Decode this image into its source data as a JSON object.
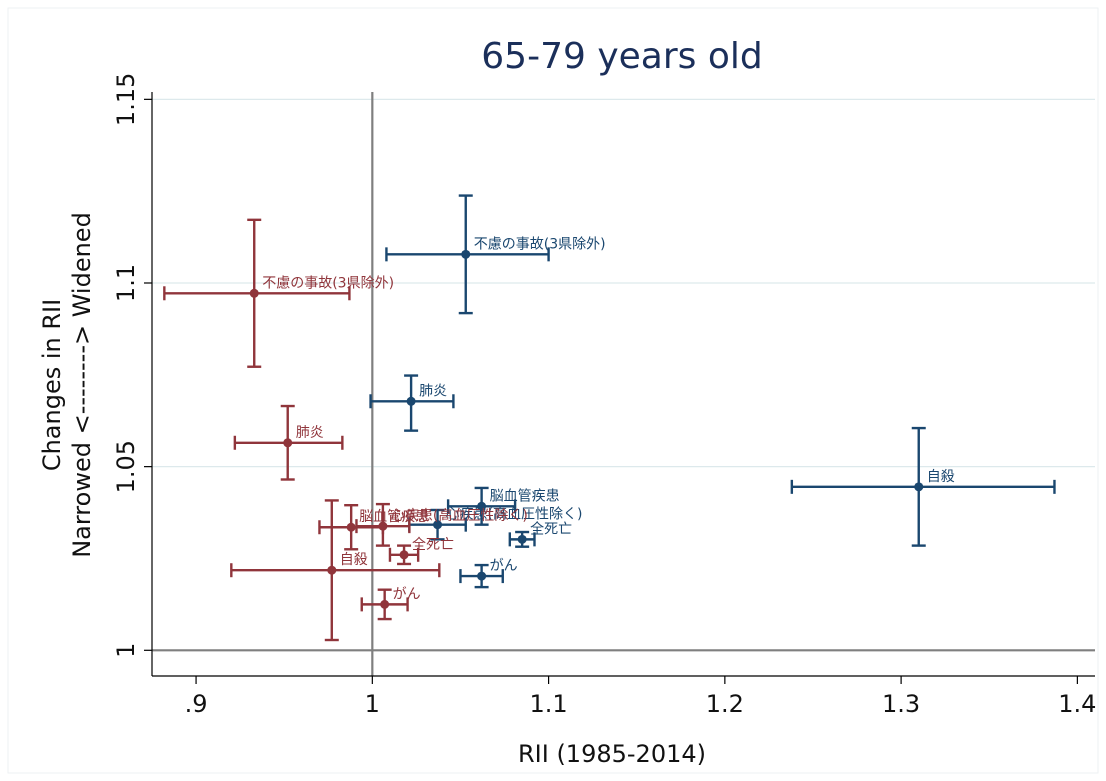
{
  "chart_data": {
    "type": "scatter",
    "title": "65-79 years old",
    "xlabel": "RII (1985-2014)",
    "ylabel_lines": [
      "Changes in RII",
      "Narrowed <--------> Widened"
    ],
    "xlim": [
      0.875,
      1.41
    ],
    "ylim": [
      0.993,
      1.152
    ],
    "xticks": [
      {
        "value": 0.9,
        "label": ".9"
      },
      {
        "value": 1.0,
        "label": "1"
      },
      {
        "value": 1.1,
        "label": "1.1"
      },
      {
        "value": 1.2,
        "label": "1.2"
      },
      {
        "value": 1.3,
        "label": "1.3"
      },
      {
        "value": 1.4,
        "label": "1.4"
      }
    ],
    "yticks": [
      {
        "value": 1.0,
        "label": "1"
      },
      {
        "value": 1.05,
        "label": "1.05"
      },
      {
        "value": 1.1,
        "label": "1.1"
      },
      {
        "value": 1.15,
        "label": "1.15"
      }
    ],
    "reference_lines": {
      "x": 1.0,
      "y": 1.0
    },
    "grid": "horizontal",
    "series": [
      {
        "color": "#1a476f",
        "points": [
          {
            "label": "不慮の事故(3県除外)",
            "x": 1.053,
            "y": 1.1078,
            "xlo": 1.008,
            "xhi": 1.1,
            "ylo": 1.0918,
            "yhi": 1.1238
          },
          {
            "label": "肺炎",
            "x": 1.022,
            "y": 1.0678,
            "xlo": 0.999,
            "xhi": 1.046,
            "ylo": 1.0598,
            "yhi": 1.0748
          },
          {
            "label": "自殺",
            "x": 1.31,
            "y": 1.0445,
            "xlo": 1.238,
            "xhi": 1.387,
            "ylo": 1.0285,
            "yhi": 1.0605
          },
          {
            "label": "脳血管疾患",
            "x": 1.062,
            "y": 1.0392,
            "xlo": 1.043,
            "xhi": 1.081,
            "ylo": 1.0342,
            "yhi": 1.0442
          },
          {
            "label": "心疾患(高血圧性除く)",
            "x": 1.037,
            "y": 1.0342,
            "xlo": 1.021,
            "xhi": 1.053,
            "ylo": 1.0302,
            "yhi": 1.0382
          },
          {
            "label": "全死亡",
            "x": 1.085,
            "y": 1.0302,
            "xlo": 1.078,
            "xhi": 1.092,
            "ylo": 1.0282,
            "yhi": 1.0322
          },
          {
            "label": "がん",
            "x": 1.062,
            "y": 1.0202,
            "xlo": 1.05,
            "xhi": 1.074,
            "ylo": 1.0172,
            "yhi": 1.0232
          }
        ]
      },
      {
        "color": "#90353b",
        "points": [
          {
            "label": "不慮の事故(3県除外)",
            "x": 0.933,
            "y": 1.0972,
            "xlo": 0.882,
            "xhi": 0.987,
            "ylo": 1.0772,
            "yhi": 1.1172
          },
          {
            "label": "肺炎",
            "x": 0.952,
            "y": 1.0565,
            "xlo": 0.922,
            "xhi": 0.983,
            "ylo": 1.0465,
            "yhi": 1.0665
          },
          {
            "label": "脳血管疾患",
            "x": 0.988,
            "y": 1.0335,
            "xlo": 0.97,
            "xhi": 1.006,
            "ylo": 1.0275,
            "yhi": 1.0395
          },
          {
            "label": "心疾患(高血圧性除く)",
            "x": 1.006,
            "y": 1.0338,
            "xlo": 0.991,
            "xhi": 1.021,
            "ylo": 1.0285,
            "yhi": 1.0398
          },
          {
            "label": "全死亡",
            "x": 1.018,
            "y": 1.026,
            "xlo": 1.01,
            "xhi": 1.026,
            "ylo": 1.0235,
            "yhi": 1.0285
          },
          {
            "label": "自殺",
            "x": 0.977,
            "y": 1.0218,
            "xlo": 0.92,
            "xhi": 1.038,
            "ylo": 1.0028,
            "yhi": 1.0408
          },
          {
            "label": "がん",
            "x": 1.007,
            "y": 1.0125,
            "xlo": 0.994,
            "xhi": 1.02,
            "ylo": 1.0085,
            "yhi": 1.0165
          }
        ]
      }
    ]
  }
}
